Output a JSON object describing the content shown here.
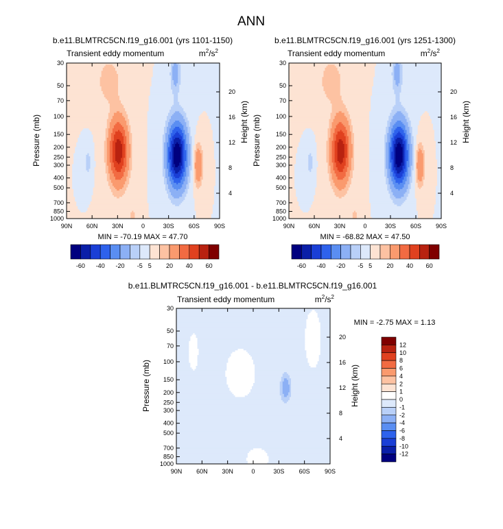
{
  "figure": {
    "title": "ANN",
    "min_label": "MIN",
    "max_label": "MAX"
  },
  "panel_title_parts": {
    "variable": "Transient eddy momentum",
    "unit_base": "m",
    "unit_sup1": "2",
    "unit_mid": "/s",
    "unit_sup2": "2"
  },
  "chart_data": [
    {
      "type": "heatmap",
      "title": "b.e11.BLMTRC5CN.f19_g16.001 (yrs 1101-1150)",
      "left_label": "Transient eddy momentum",
      "xlabel": "",
      "ylabel": "Pressure (mb)",
      "ylabel_right": "Height (km)",
      "x_ticks": [
        "90N",
        "60N",
        "30N",
        "0",
        "30S",
        "60S",
        "90S"
      ],
      "y_ticks": [
        "30",
        "50",
        "70",
        "100",
        "150",
        "200",
        "250",
        "300",
        "400",
        "500",
        "700",
        "850",
        "1000"
      ],
      "y_ticks_right": [
        "20",
        "16",
        "12",
        "8",
        "4"
      ],
      "min": "-70.19",
      "max": "47.70",
      "colorbar_labels": [
        "-60",
        "-40",
        "-20",
        "-5",
        "5",
        "20",
        "40",
        "60"
      ],
      "extrema": [
        {
          "lat": 29,
          "p": 220,
          "value": 47.7
        },
        {
          "lat": -40,
          "p": 240,
          "value": -70.19
        },
        {
          "lat": -65,
          "p": 300,
          "value": 20
        },
        {
          "lat": 65,
          "p": 280,
          "value": -8
        }
      ]
    },
    {
      "type": "heatmap",
      "title": "b.e11.BLMTRC5CN.f19_g16.001 (yrs 1251-1300)",
      "left_label": "Transient eddy momentum",
      "xlabel": "",
      "ylabel": "Pressure (mb)",
      "ylabel_right": "Height (km)",
      "x_ticks": [
        "90N",
        "60N",
        "30N",
        "0",
        "30S",
        "60S",
        "90S"
      ],
      "y_ticks": [
        "30",
        "50",
        "70",
        "100",
        "150",
        "200",
        "250",
        "300",
        "400",
        "500",
        "700",
        "850",
        "1000"
      ],
      "y_ticks_right": [
        "20",
        "16",
        "12",
        "8",
        "4"
      ],
      "min": "-68.82",
      "max": "47.50",
      "colorbar_labels": [
        "-60",
        "-40",
        "-20",
        "-5",
        "5",
        "20",
        "40",
        "60"
      ],
      "extrema": [
        {
          "lat": 29,
          "p": 220,
          "value": 47.5
        },
        {
          "lat": -40,
          "p": 240,
          "value": -68.82
        },
        {
          "lat": -65,
          "p": 300,
          "value": 20
        },
        {
          "lat": 65,
          "p": 280,
          "value": -8
        }
      ]
    },
    {
      "type": "heatmap",
      "title": "b.e11.BLMTRC5CN.f19_g16.001 - b.e11.BLMTRC5CN.f19_g16.001",
      "left_label": "Transient eddy momentum",
      "xlabel": "",
      "ylabel": "Pressure (mb)",
      "ylabel_right": "Height (km)",
      "x_ticks": [
        "90N",
        "60N",
        "30N",
        "0",
        "30S",
        "60S",
        "90S"
      ],
      "y_ticks": [
        "30",
        "50",
        "70",
        "100",
        "150",
        "200",
        "250",
        "300",
        "400",
        "500",
        "700",
        "850",
        "1000"
      ],
      "y_ticks_right": [
        "20",
        "16",
        "12",
        "8",
        "4"
      ],
      "min": "-2.75",
      "max": "1.13",
      "colorbar_labels": [
        "12",
        "10",
        "8",
        "6",
        "4",
        "2",
        "1",
        "0",
        "-1",
        "-2",
        "-4",
        "-6",
        "-8",
        "-10",
        "-12"
      ],
      "extrema": [
        {
          "lat": -38,
          "p": 180,
          "value": -2.75
        },
        {
          "lat": 15,
          "p": 130,
          "value": 1.13
        }
      ]
    }
  ],
  "colors": {
    "abs_scale": [
      "#00007f",
      "#0a1fa8",
      "#1a3fd6",
      "#2e62ec",
      "#5a8ef2",
      "#8cb0f5",
      "#b9d0f8",
      "#dde9fb",
      "#fde3d3",
      "#fdc2a2",
      "#fa9a6e",
      "#f26b42",
      "#e0411f",
      "#b82210",
      "#7f0000"
    ],
    "diff_scale": [
      "#7f0000",
      "#b82210",
      "#e0411f",
      "#f26b42",
      "#fa9a6e",
      "#fdc2a2",
      "#fde3d3",
      "#ffffff",
      "#dde9fb",
      "#b9d0f8",
      "#8cb0f5",
      "#5a8ef2",
      "#2e62ec",
      "#1a3fd6",
      "#0a1fa8",
      "#00007f"
    ]
  }
}
